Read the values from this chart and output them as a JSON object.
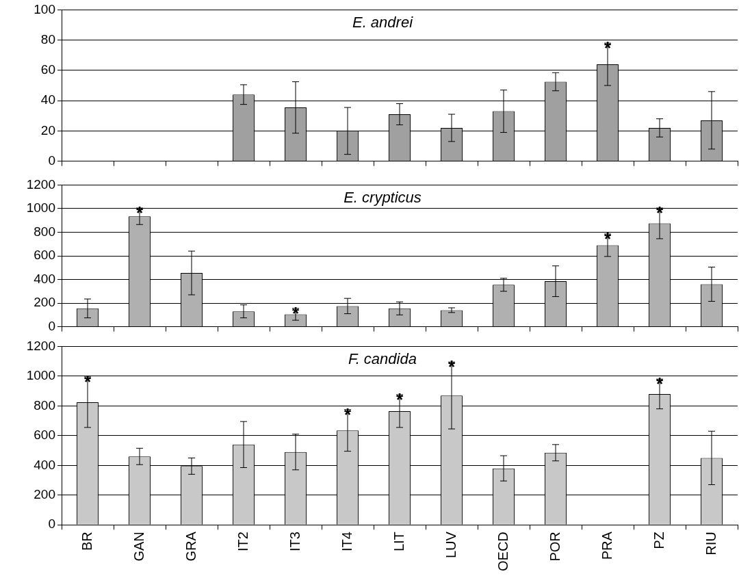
{
  "chart_data": [
    {
      "type": "bar",
      "title": "E. andrei",
      "categories": [
        "BR",
        "GAN",
        "GRA",
        "IT2",
        "IT3",
        "IT4",
        "LIT",
        "LUV",
        "OECD",
        "POR",
        "PRA",
        "PZ",
        "RIU"
      ],
      "values": [
        null,
        null,
        null,
        44,
        35.5,
        20,
        31,
        22,
        33,
        52.5,
        64,
        22,
        27
      ],
      "errors": [
        null,
        null,
        null,
        6.5,
        17,
        15.5,
        7,
        9,
        14,
        6,
        14,
        6,
        19
      ],
      "color": "#a0a0a0",
      "ylim": [
        0,
        100
      ],
      "yticks": [
        0,
        20,
        40,
        60,
        80,
        100
      ],
      "grid": "y",
      "tick_labels": "y",
      "annotations": [
        {
          "text": "*",
          "x": "PRA",
          "y": 78
        }
      ]
    },
    {
      "type": "bar",
      "title": "E. crypticus",
      "categories": [
        "BR",
        "GAN",
        "GRA",
        "IT2",
        "IT3",
        "IT4",
        "LIT",
        "LUV",
        "OECD",
        "POR",
        "PRA",
        "PZ",
        "RIU"
      ],
      "values": [
        155,
        935,
        455,
        130,
        105,
        175,
        155,
        140,
        355,
        385,
        690,
        875,
        360
      ],
      "errors": [
        80,
        70,
        185,
        55,
        50,
        65,
        55,
        20,
        55,
        130,
        95,
        130,
        145
      ],
      "color": "#b0b0b0",
      "ylim": [
        0,
        1200
      ],
      "yticks": [
        0,
        200,
        400,
        600,
        800,
        1000,
        1200
      ],
      "grid": "y",
      "tick_labels": "y",
      "annotations": [
        {
          "text": "*",
          "x": "GAN",
          "y": 1005
        },
        {
          "text": "*",
          "x": "IT3",
          "y": 155
        },
        {
          "text": "*",
          "x": "PRA",
          "y": 785
        },
        {
          "text": "*",
          "x": "PZ",
          "y": 1005
        }
      ]
    },
    {
      "type": "bar",
      "title": "F. candida",
      "categories": [
        "BR",
        "GAN",
        "GRA",
        "IT2",
        "IT3",
        "IT4",
        "LIT",
        "LUV",
        "OECD",
        "POR",
        "PRA",
        "PZ",
        "RIU"
      ],
      "values": [
        825,
        460,
        395,
        540,
        490,
        635,
        765,
        870,
        380,
        485,
        null,
        880,
        450
      ],
      "errors": [
        170,
        55,
        55,
        155,
        120,
        140,
        110,
        225,
        85,
        55,
        null,
        100,
        180
      ],
      "color": "#c8c8c8",
      "ylim": [
        0,
        1200
      ],
      "yticks": [
        0,
        200,
        400,
        600,
        800,
        1000,
        1200
      ],
      "grid": "y",
      "annotations": [
        {
          "text": "*",
          "x": "BR",
          "y": 995
        },
        {
          "text": "*",
          "x": "IT4",
          "y": 775
        },
        {
          "text": "*",
          "x": "LIT",
          "y": 875
        },
        {
          "text": "*",
          "x": "LUV",
          "y": 1095
        },
        {
          "text": "*",
          "x": "PZ",
          "y": 980
        }
      ]
    }
  ]
}
